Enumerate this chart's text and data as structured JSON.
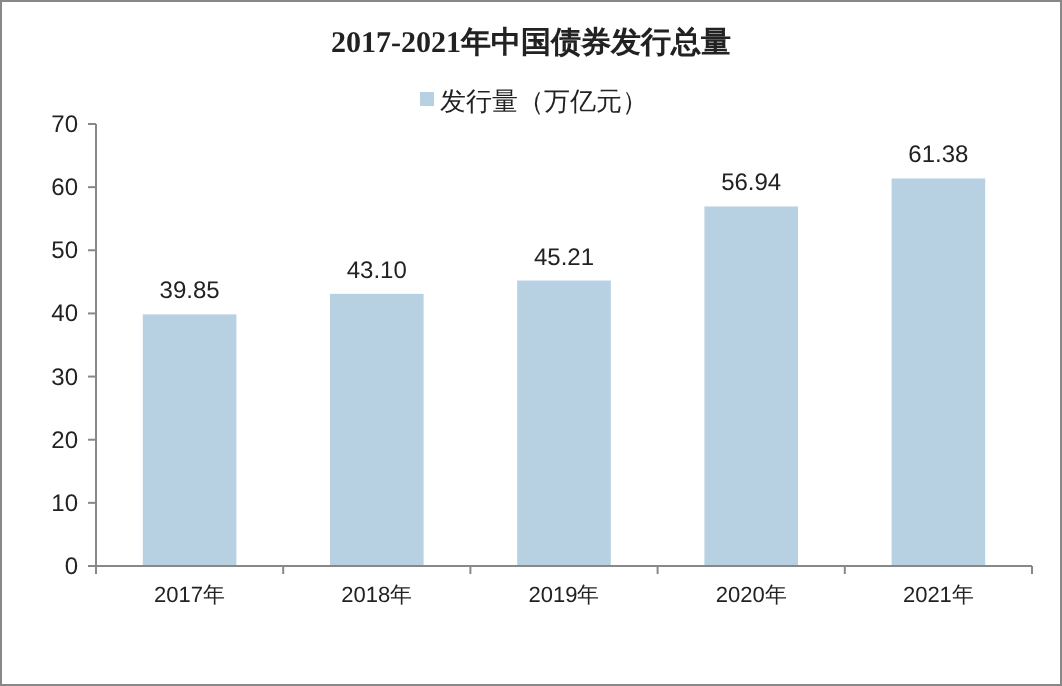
{
  "chart_data": {
    "type": "bar",
    "title": "2017-2021年中国债券发行总量",
    "categories": [
      "2017年",
      "2018年",
      "2019年",
      "2020年",
      "2021年"
    ],
    "series": [
      {
        "name": "发行量（万亿元）",
        "color": "#b7d1e3",
        "values": [
          39.85,
          43.1,
          45.21,
          56.94,
          61.38
        ]
      }
    ],
    "value_labels": [
      "39.85",
      "43.10",
      "45.21",
      "56.94",
      "61.38"
    ],
    "ylim": [
      0,
      70
    ],
    "yticks": [
      0,
      10,
      20,
      30,
      40,
      50,
      60,
      70
    ],
    "grid": false,
    "legend": "top"
  }
}
